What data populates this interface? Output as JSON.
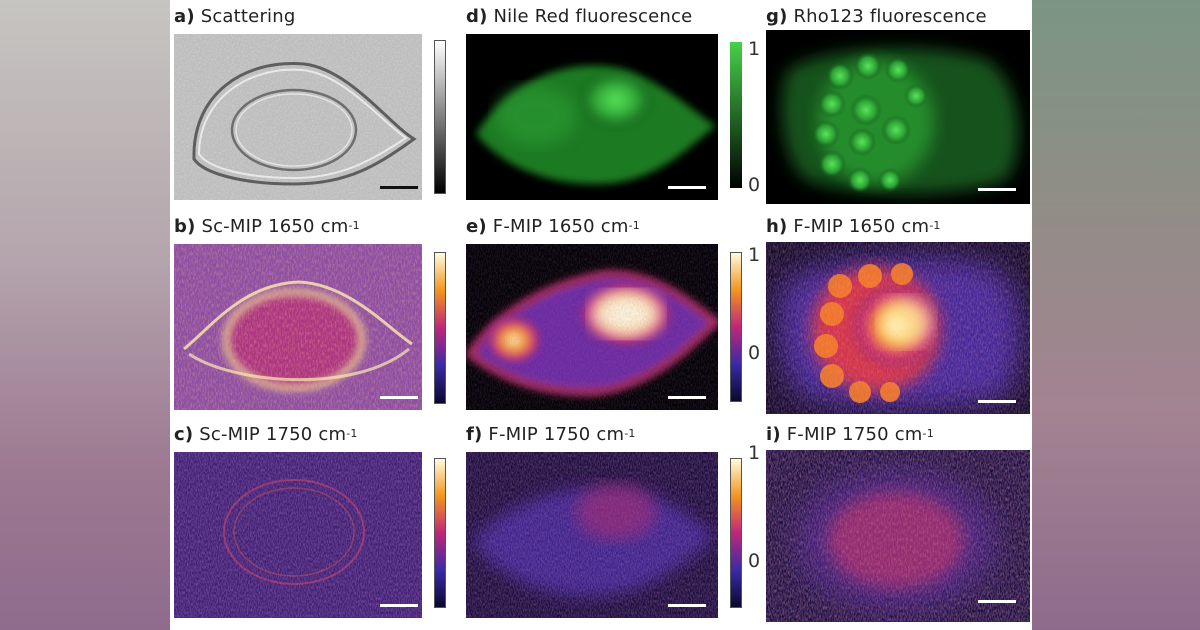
{
  "panels": {
    "a": {
      "letter": "a)",
      "title": "Scattering",
      "unit": ""
    },
    "b": {
      "letter": "b)",
      "title": "Sc-MIP 1650 cm",
      "unit": "-1"
    },
    "c": {
      "letter": "c)",
      "title": "Sc-MIP 1750 cm",
      "unit": "-1"
    },
    "d": {
      "letter": "d)",
      "title": "Nile Red fluorescence",
      "unit": ""
    },
    "e": {
      "letter": "e)",
      "title": "F-MIP 1650 cm",
      "unit": "-1"
    },
    "f": {
      "letter": "f)",
      "title": "F-MIP 1750 cm",
      "unit": "-1"
    },
    "g": {
      "letter": "g)",
      "title": "Rho123 fluorescence",
      "unit": ""
    },
    "h": {
      "letter": "h)",
      "title": "F-MIP 1650 cm",
      "unit": "-1"
    },
    "i": {
      "letter": "i)",
      "title": "F-MIP 1750 cm",
      "unit": "-1"
    }
  },
  "colorbars": {
    "green": {
      "max": "1",
      "min": "0"
    },
    "fire_e": {
      "max": "1",
      "min": "0"
    },
    "fire_f": {
      "max": "1",
      "min": "0"
    }
  },
  "colors": {
    "fire_low": "#1a1060",
    "fire_mid": "#c2256e",
    "fire_high": "#fff6a0",
    "green": "#39c43c",
    "background_left": "#b9b7b3",
    "background_right": "#7b9584"
  }
}
